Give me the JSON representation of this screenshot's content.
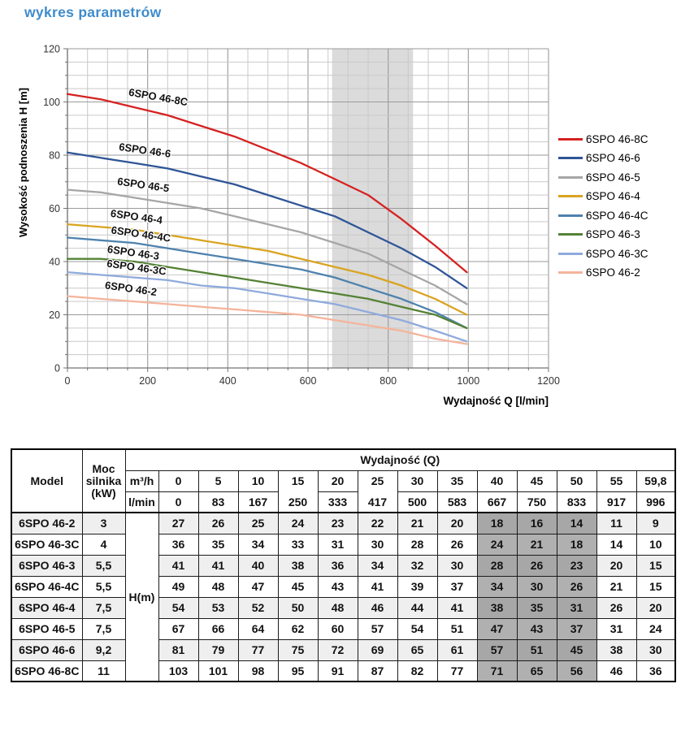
{
  "page": {
    "title": "wykres parametrów"
  },
  "chart_data": {
    "type": "line",
    "title": "wykres parametrów",
    "xlabel": "Wydajność Q [l/min]",
    "ylabel": "Wysokość podnoszenia H [m]",
    "xlim": [
      0,
      1200
    ],
    "ylim": [
      0,
      120
    ],
    "x_tick_step": 200,
    "x_minor_step": 50,
    "y_tick_step": 20,
    "y_minor_step": 5,
    "x_tick_labels": [
      "0",
      "200",
      "400",
      "600",
      "800",
      "1000",
      "1200"
    ],
    "y_tick_labels": [
      "0",
      "20",
      "40",
      "60",
      "80",
      "100",
      "120"
    ],
    "grid": true,
    "legend_position": "right",
    "band": {
      "from": 660,
      "to": 862,
      "color": "#DBDBDB"
    },
    "x": [
      0,
      83,
      167,
      250,
      333,
      417,
      500,
      583,
      667,
      750,
      833,
      917,
      996
    ],
    "series": [
      {
        "name": "6SPO 46-8C",
        "color": "#D52221",
        "values": [
          103,
          101,
          98,
          95,
          91,
          87,
          82,
          77,
          71,
          65,
          56,
          46,
          36
        ]
      },
      {
        "name": "6SPO 46-6",
        "color": "#2F5597",
        "values": [
          81,
          79,
          77,
          75,
          72,
          69,
          65,
          61,
          57,
          51,
          45,
          38,
          30
        ]
      },
      {
        "name": "6SPO 46-5",
        "color": "#A6A6A6",
        "values": [
          67,
          66,
          64,
          62,
          60,
          57,
          54,
          51,
          47,
          43,
          37,
          31,
          24
        ]
      },
      {
        "name": "6SPO 46-4",
        "color": "#D9A420",
        "values": [
          54,
          53,
          52,
          50,
          48,
          46,
          44,
          41,
          38,
          35,
          31,
          26,
          20
        ]
      },
      {
        "name": "6SPO 46-4C",
        "color": "#4E82AE",
        "values": [
          49,
          48,
          47,
          45,
          43,
          41,
          39,
          37,
          34,
          30,
          26,
          21,
          15
        ]
      },
      {
        "name": "6SPO 46-3",
        "color": "#548235",
        "values": [
          41,
          41,
          40,
          38,
          36,
          34,
          32,
          30,
          28,
          26,
          23,
          20,
          15
        ]
      },
      {
        "name": "6SPO 46-3C",
        "color": "#8FAADC",
        "values": [
          36,
          35,
          34,
          33,
          31,
          30,
          28,
          26,
          24,
          21,
          18,
          14,
          10
        ]
      },
      {
        "name": "6SPO 46-2",
        "color": "#F4B49B",
        "values": [
          27,
          26,
          25,
          24,
          23,
          22,
          21,
          20,
          18,
          16,
          14,
          11,
          9
        ]
      }
    ],
    "curve_labels": [
      {
        "text": "6SPO 46-8C",
        "q": 225,
        "h": 100.5,
        "rot": 10
      },
      {
        "text": "6SPO 46-6",
        "q": 192,
        "h": 80.5,
        "rot": 8
      },
      {
        "text": "6SPO 46-5",
        "q": 188,
        "h": 67.5,
        "rot": 8
      },
      {
        "text": "6SPO 46-4",
        "q": 171,
        "h": 55.5,
        "rot": 8
      },
      {
        "text": "6SPO 46-4C",
        "q": 182,
        "h": 49.0,
        "rot": 8
      },
      {
        "text": "6SPO 46-3",
        "q": 163,
        "h": 42.0,
        "rot": 8
      },
      {
        "text": "6SPO 46-3C",
        "q": 171,
        "h": 36.5,
        "rot": 8
      },
      {
        "text": "6SPO 46-2",
        "q": 157,
        "h": 28.5,
        "rot": 8
      }
    ]
  },
  "table": {
    "header": {
      "model": "Model",
      "power": "Moc silnika (kW)",
      "group": "Wydajność (Q)",
      "unit_m3h": "m³/h",
      "unit_lmin": "l/min",
      "body_unit": "H(m)",
      "m3h": [
        "0",
        "5",
        "10",
        "15",
        "20",
        "25",
        "30",
        "35",
        "40",
        "45",
        "50",
        "55",
        "59,8"
      ],
      "lmin": [
        "0",
        "83",
        "167",
        "250",
        "333",
        "417",
        "500",
        "583",
        "667",
        "750",
        "833",
        "917",
        "996"
      ]
    },
    "highlight_columns": [
      8,
      9,
      10
    ],
    "merged_header_columns": [
      3,
      5
    ],
    "rows": [
      {
        "model": "6SPO 46-2",
        "power": "3",
        "values": [
          "27",
          "26",
          "25",
          "24",
          "23",
          "22",
          "21",
          "20",
          "18",
          "16",
          "14",
          "11",
          "9"
        ]
      },
      {
        "model": "6SPO 46-3C",
        "power": "4",
        "values": [
          "36",
          "35",
          "34",
          "33",
          "31",
          "30",
          "28",
          "26",
          "24",
          "21",
          "18",
          "14",
          "10"
        ]
      },
      {
        "model": "6SPO 46-3",
        "power": "5,5",
        "values": [
          "41",
          "41",
          "40",
          "38",
          "36",
          "34",
          "32",
          "30",
          "28",
          "26",
          "23",
          "20",
          "15"
        ]
      },
      {
        "model": "6SPO 46-4C",
        "power": "5,5",
        "values": [
          "49",
          "48",
          "47",
          "45",
          "43",
          "41",
          "39",
          "37",
          "34",
          "30",
          "26",
          "21",
          "15"
        ]
      },
      {
        "model": "6SPO 46-4",
        "power": "7,5",
        "values": [
          "54",
          "53",
          "52",
          "50",
          "48",
          "46",
          "44",
          "41",
          "38",
          "35",
          "31",
          "26",
          "20"
        ]
      },
      {
        "model": "6SPO 46-5",
        "power": "7,5",
        "values": [
          "67",
          "66",
          "64",
          "62",
          "60",
          "57",
          "54",
          "51",
          "47",
          "43",
          "37",
          "31",
          "24"
        ]
      },
      {
        "model": "6SPO 46-6",
        "power": "9,2",
        "values": [
          "81",
          "79",
          "77",
          "75",
          "72",
          "69",
          "65",
          "61",
          "57",
          "51",
          "45",
          "38",
          "30"
        ]
      },
      {
        "model": "6SPO 46-8C",
        "power": "11",
        "values": [
          "103",
          "101",
          "98",
          "95",
          "91",
          "87",
          "82",
          "77",
          "71",
          "65",
          "56",
          "46",
          "36"
        ]
      }
    ]
  }
}
